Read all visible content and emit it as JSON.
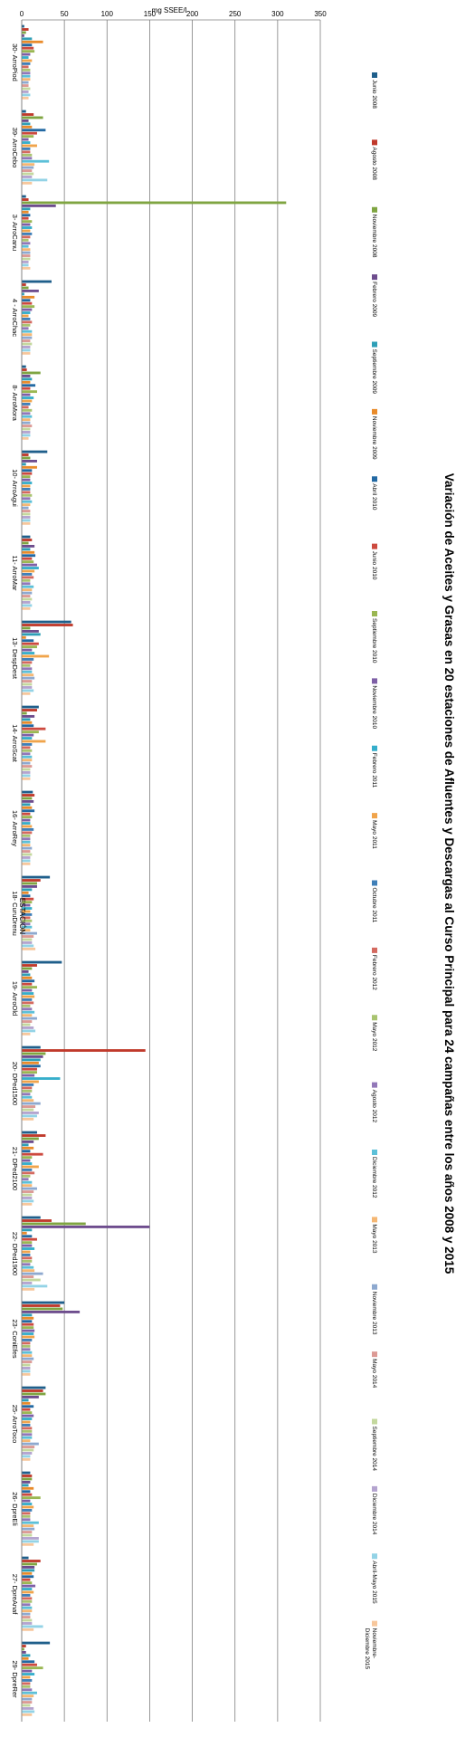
{
  "chart_data": {
    "type": "bar",
    "orientation": "horizontal",
    "title": "Variación de Aceites y Grasas en 20 estaciones de Afluentes y Descargas al Curso Principal para 24 campañas entre los años 2008 y 2015",
    "xlabel": "mg SSEE/l",
    "ylabel": "ESTACIÓN",
    "xlim": [
      0,
      350
    ],
    "xticks": [
      "0",
      "50",
      "100",
      "150",
      "200",
      "250",
      "300",
      "350"
    ],
    "grid": true,
    "legend_position": "right",
    "categories": [
      "30- ArroPiod",
      "39- ArroCebo",
      "3- ArroCanu",
      "4 - ArroChac",
      "8- ArroMora",
      "10- ArroAgui",
      "11- ArroMar",
      "13- DespDest",
      "14- ArroScat",
      "16- ArroRey",
      "18- CuruDrenu",
      "19- ArroOld",
      "20- DPed1500",
      "21- DPed2100",
      "22- DPed1900",
      "23- ConiEfes",
      "25- ArroToco",
      "26- DpreEli",
      "27- DpreAnaf",
      "29- DpreRer"
    ],
    "series": [
      {
        "name": "Junio 2008",
        "color": "#1f5f8b",
        "values": [
          3,
          5,
          5,
          35,
          5,
          30,
          10,
          58,
          20,
          13,
          33,
          47,
          22,
          18,
          22,
          50,
          28,
          10,
          8,
          33
        ]
      },
      {
        "name": "Agosto 2008",
        "color": "#c0392b",
        "values": [
          8,
          14,
          8,
          5,
          6,
          8,
          12,
          60,
          18,
          15,
          22,
          18,
          145,
          28,
          35,
          45,
          25,
          12,
          22,
          5
        ]
      },
      {
        "name": "Noviembre 2008",
        "color": "#7fa541",
        "values": [
          5,
          25,
          310,
          8,
          22,
          10,
          8,
          10,
          6,
          12,
          18,
          12,
          28,
          20,
          75,
          48,
          28,
          12,
          18,
          3
        ]
      },
      {
        "name": "Febrero 2009",
        "color": "#6d4c8d",
        "values": [
          3,
          8,
          40,
          20,
          10,
          18,
          15,
          20,
          15,
          14,
          18,
          8,
          25,
          14,
          150,
          68,
          20,
          10,
          15,
          5
        ]
      },
      {
        "name": "Septiembre 2009",
        "color": "#2e9fb7",
        "values": [
          12,
          10,
          10,
          3,
          12,
          5,
          10,
          22,
          10,
          10,
          12,
          10,
          22,
          8,
          12,
          12,
          8,
          8,
          15,
          10
        ]
      },
      {
        "name": "Noviembre 2009",
        "color": "#e98b2a",
        "values": [
          25,
          12,
          8,
          15,
          10,
          18,
          15,
          5,
          12,
          12,
          8,
          12,
          20,
          14,
          6,
          14,
          10,
          14,
          12,
          8
        ]
      },
      {
        "name": "Abril 2010",
        "color": "#2369a3",
        "values": [
          12,
          28,
          10,
          10,
          16,
          12,
          16,
          14,
          14,
          15,
          10,
          15,
          22,
          10,
          12,
          12,
          14,
          10,
          14,
          15
        ]
      },
      {
        "name": "Junio 2010",
        "color": "#cd4a3f",
        "values": [
          14,
          18,
          8,
          12,
          10,
          12,
          12,
          20,
          28,
          10,
          14,
          12,
          18,
          25,
          18,
          14,
          10,
          12,
          10,
          18
        ]
      },
      {
        "name": "Septiembre 2010",
        "color": "#9ab752",
        "values": [
          15,
          14,
          12,
          15,
          18,
          10,
          14,
          18,
          20,
          12,
          12,
          18,
          18,
          12,
          12,
          14,
          12,
          22,
          12,
          25
        ]
      },
      {
        "name": "Noviembre 2010",
        "color": "#7e5fa6",
        "values": [
          10,
          8,
          10,
          12,
          10,
          10,
          18,
          12,
          14,
          10,
          10,
          12,
          15,
          10,
          12,
          15,
          14,
          10,
          16,
          12
        ]
      },
      {
        "name": "Febrero 2011",
        "color": "#35aecb",
        "values": [
          8,
          10,
          12,
          10,
          14,
          12,
          20,
          15,
          12,
          10,
          12,
          14,
          45,
          12,
          15,
          14,
          12,
          12,
          12,
          15
        ]
      },
      {
        "name": "Mayo 2011",
        "color": "#f0a44b",
        "values": [
          12,
          18,
          10,
          8,
          12,
          10,
          15,
          32,
          28,
          12,
          10,
          15,
          20,
          20,
          10,
          15,
          10,
          14,
          14,
          10
        ]
      },
      {
        "name": "Octubre 2011",
        "color": "#3f7fb8",
        "values": [
          10,
          10,
          12,
          10,
          10,
          10,
          12,
          14,
          12,
          14,
          12,
          12,
          14,
          12,
          10,
          12,
          10,
          12,
          10,
          12
        ]
      },
      {
        "name": "Febrero 2012",
        "color": "#d46a60",
        "values": [
          8,
          10,
          10,
          12,
          8,
          10,
          14,
          12,
          10,
          12,
          10,
          14,
          12,
          15,
          12,
          10,
          12,
          10,
          12,
          10
        ]
      },
      {
        "name": "Mayo 2012",
        "color": "#a9c470",
        "values": [
          10,
          12,
          8,
          10,
          12,
          12,
          10,
          10,
          12,
          10,
          12,
          10,
          12,
          10,
          12,
          10,
          12,
          10,
          12,
          10
        ]
      },
      {
        "name": "Agosto 2012",
        "color": "#9278b8",
        "values": [
          10,
          12,
          10,
          8,
          10,
          10,
          10,
          12,
          10,
          10,
          10,
          12,
          10,
          8,
          10,
          10,
          12,
          10,
          10,
          12
        ]
      },
      {
        "name": "Diciembre 2012",
        "color": "#5cc0d8",
        "values": [
          10,
          32,
          8,
          12,
          12,
          12,
          14,
          12,
          12,
          10,
          12,
          15,
          12,
          12,
          14,
          12,
          12,
          20,
          12,
          18
        ]
      },
      {
        "name": "Mayo 2013",
        "color": "#f5b774",
        "values": [
          10,
          15,
          10,
          12,
          10,
          10,
          12,
          14,
          12,
          10,
          10,
          12,
          14,
          12,
          15,
          12,
          10,
          14,
          12,
          14
        ]
      },
      {
        "name": "Noviembre 2013",
        "color": "#8ea9cf",
        "values": [
          8,
          14,
          10,
          12,
          10,
          8,
          12,
          15,
          10,
          12,
          18,
          18,
          22,
          18,
          25,
          14,
          20,
          15,
          10,
          12
        ]
      },
      {
        "name": "Mayo 2014",
        "color": "#dc9a95",
        "values": [
          8,
          12,
          10,
          10,
          12,
          10,
          10,
          12,
          12,
          10,
          14,
          12,
          16,
          14,
          14,
          12,
          15,
          12,
          10,
          12
        ]
      },
      {
        "name": "Septiembre 2014",
        "color": "#c4d89e",
        "values": [
          10,
          14,
          10,
          12,
          10,
          10,
          12,
          12,
          10,
          12,
          12,
          10,
          14,
          12,
          22,
          10,
          14,
          12,
          12,
          10
        ]
      },
      {
        "name": "Diciembre 2014",
        "color": "#b4a4cf",
        "values": [
          8,
          12,
          8,
          10,
          10,
          10,
          10,
          12,
          10,
          10,
          12,
          14,
          20,
          12,
          12,
          10,
          12,
          20,
          12,
          14
        ]
      },
      {
        "name": "Abril-Mayo 2015",
        "color": "#93d3e6",
        "values": [
          10,
          30,
          8,
          10,
          10,
          10,
          12,
          14,
          10,
          10,
          14,
          16,
          18,
          14,
          30,
          10,
          10,
          20,
          25,
          15
        ]
      },
      {
        "name": "Noviembre-Diciembre 2015",
        "color": "#f7c79c",
        "values": [
          8,
          12,
          10,
          10,
          8,
          10,
          10,
          10,
          10,
          10,
          16,
          10,
          14,
          12,
          15,
          10,
          10,
          14,
          14,
          12
        ]
      }
    ]
  }
}
